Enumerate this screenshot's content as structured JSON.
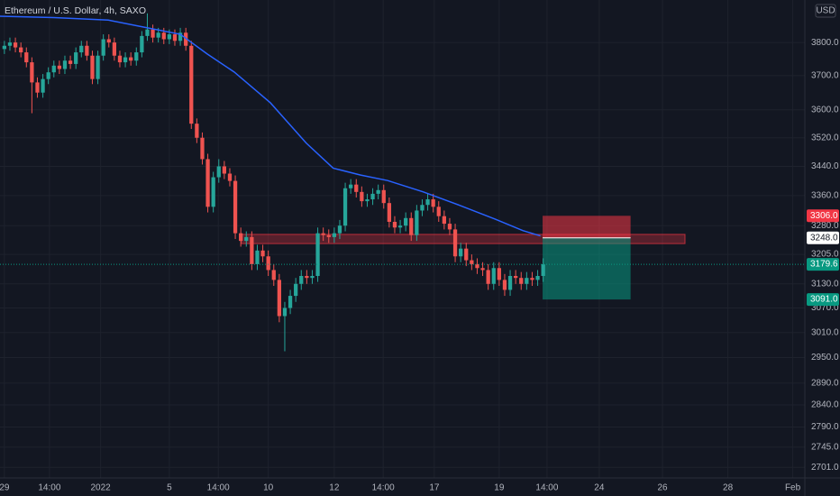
{
  "chart_data": {
    "type": "candlestick",
    "title": "Ethereum / U.S. Dollar, 4h, SAXO",
    "currency": "USD",
    "log": true,
    "grid": true,
    "up_color": "#26a69a",
    "down_color": "#ef5350",
    "open": [
      3780,
      3790,
      3800,
      3785,
      3770,
      3740,
      3680,
      3650,
      3690,
      3710,
      3730,
      3720,
      3745,
      3735,
      3770,
      3790,
      3760,
      3690,
      3760,
      3810,
      3800,
      3760,
      3740,
      3755,
      3745,
      3770,
      3820,
      3840,
      3815,
      3830,
      3810,
      3825,
      3805,
      3830,
      3790,
      3560,
      3520,
      3460,
      3330,
      3410,
      3440,
      3420,
      3400,
      3260,
      3240,
      3250,
      3180,
      3215,
      3200,
      3165,
      3140,
      3050,
      3070,
      3100,
      3130,
      3150,
      3145,
      3150,
      3260,
      3255,
      3250,
      3260,
      3280,
      3380,
      3390,
      3370,
      3345,
      3350,
      3365,
      3375,
      3340,
      3290,
      3275,
      3280,
      3300,
      3255,
      3320,
      3335,
      3350,
      3330,
      3305,
      3285,
      3270,
      3200,
      3220,
      3190,
      3180,
      3170,
      3165,
      3130,
      3170,
      3140,
      3115,
      3150,
      3145,
      3130,
      3145,
      3140,
      3150
    ],
    "high": [
      3805,
      3815,
      3815,
      3800,
      3785,
      3755,
      3695,
      3705,
      3725,
      3745,
      3745,
      3760,
      3760,
      3785,
      3805,
      3805,
      3775,
      3775,
      3825,
      3825,
      3815,
      3775,
      3770,
      3770,
      3785,
      3835,
      3890,
      3855,
      3845,
      3845,
      3840,
      3840,
      3845,
      3845,
      3805,
      3575,
      3535,
      3475,
      3425,
      3460,
      3455,
      3435,
      3415,
      3275,
      3265,
      3265,
      3230,
      3230,
      3215,
      3180,
      3155,
      3085,
      3115,
      3145,
      3165,
      3165,
      3165,
      3275,
      3275,
      3270,
      3275,
      3295,
      3395,
      3405,
      3405,
      3385,
      3365,
      3380,
      3390,
      3390,
      3355,
      3305,
      3295,
      3315,
      3315,
      3335,
      3350,
      3365,
      3365,
      3345,
      3320,
      3300,
      3285,
      3235,
      3235,
      3205,
      3195,
      3185,
      3180,
      3185,
      3185,
      3155,
      3165,
      3165,
      3160,
      3160,
      3160,
      3165,
      3195
    ],
    "low": [
      3765,
      3775,
      3770,
      3755,
      3725,
      3590,
      3635,
      3635,
      3675,
      3695,
      3705,
      3705,
      3720,
      3720,
      3755,
      3745,
      3675,
      3675,
      3745,
      3785,
      3745,
      3725,
      3725,
      3730,
      3730,
      3755,
      3805,
      3800,
      3800,
      3795,
      3795,
      3790,
      3790,
      3775,
      3545,
      3505,
      3445,
      3315,
      3315,
      3395,
      3405,
      3385,
      3245,
      3225,
      3225,
      3165,
      3165,
      3185,
      3150,
      3125,
      3035,
      2965,
      3055,
      3085,
      3115,
      3130,
      3130,
      3135,
      3240,
      3235,
      3235,
      3245,
      3265,
      3365,
      3355,
      3330,
      3330,
      3335,
      3350,
      3325,
      3275,
      3260,
      3260,
      3265,
      3240,
      3240,
      3305,
      3320,
      3315,
      3290,
      3270,
      3255,
      3185,
      3185,
      3175,
      3165,
      3155,
      3150,
      3115,
      3115,
      3125,
      3100,
      3100,
      3130,
      3115,
      3115,
      3125,
      3125,
      3135
    ],
    "close": [
      3790,
      3800,
      3785,
      3770,
      3740,
      3680,
      3650,
      3690,
      3710,
      3730,
      3720,
      3745,
      3735,
      3770,
      3790,
      3760,
      3690,
      3760,
      3810,
      3800,
      3760,
      3740,
      3755,
      3745,
      3770,
      3820,
      3840,
      3815,
      3830,
      3810,
      3825,
      3805,
      3830,
      3790,
      3560,
      3520,
      3460,
      3330,
      3410,
      3440,
      3420,
      3400,
      3260,
      3240,
      3250,
      3180,
      3215,
      3200,
      3165,
      3140,
      3050,
      3070,
      3100,
      3130,
      3150,
      3145,
      3150,
      3260,
      3255,
      3250,
      3260,
      3280,
      3380,
      3390,
      3370,
      3345,
      3350,
      3365,
      3375,
      3340,
      3290,
      3275,
      3280,
      3300,
      3255,
      3320,
      3335,
      3350,
      3330,
      3305,
      3285,
      3270,
      3200,
      3220,
      3190,
      3180,
      3170,
      3165,
      3130,
      3170,
      3140,
      3115,
      3150,
      3145,
      3130,
      3145,
      3140,
      3150,
      3179.6
    ],
    "ma": {
      "color": "#2962ff",
      "x": [
        -0.8,
        9,
        18.9,
        25.4,
        32,
        36.9,
        41.8,
        48.4,
        54.9,
        59.8,
        64.8,
        69.7,
        76.2,
        82.8,
        89.3,
        94.3,
        97.5
      ],
      "values": [
        3881,
        3877,
        3869,
        3847,
        3825,
        3765,
        3711,
        3620,
        3505,
        3435,
        3416,
        3401,
        3370,
        3334,
        3297,
        3267,
        3253
      ]
    },
    "zone": {
      "low": 3233,
      "high": 3257,
      "x_start": 43.1,
      "x_end": 123.8,
      "color": "#f23645"
    },
    "position": {
      "entry": 3248,
      "stop": 3306,
      "target": 3091,
      "x_start": 97.9,
      "x_end": 113.9
    },
    "price_labels": [
      {
        "value": 3306,
        "label": "3306.0",
        "color": "#f23645"
      },
      {
        "value": 3248,
        "label": "3248.0",
        "color": "#ffffff"
      },
      {
        "value": 3179.6,
        "label": "3179.6",
        "color": "#089981"
      },
      {
        "value": 3091,
        "label": "3091.0",
        "color": "#089981"
      }
    ],
    "xlim": [
      -0.8,
      145.6
    ],
    "xticks": [
      {
        "value": 0,
        "label": "29"
      },
      {
        "value": 8.2,
        "label": "14:00"
      },
      {
        "value": 17.5,
        "label": "2022"
      },
      {
        "value": 30,
        "label": "5"
      },
      {
        "value": 38.9,
        "label": "14:00"
      },
      {
        "value": 48,
        "label": "10"
      },
      {
        "value": 60,
        "label": "12"
      },
      {
        "value": 68.9,
        "label": "14:00"
      },
      {
        "value": 78.2,
        "label": "17"
      },
      {
        "value": 90,
        "label": "19"
      },
      {
        "value": 98.7,
        "label": "14:00"
      },
      {
        "value": 108.2,
        "label": "24"
      },
      {
        "value": 119.7,
        "label": "26"
      },
      {
        "value": 131.6,
        "label": "28"
      },
      {
        "value": 143.4,
        "label": "Feb"
      }
    ],
    "ylim": [
      2678,
      3932
    ],
    "yticks": [
      {
        "value": 3800,
        "label": "3800.0"
      },
      {
        "value": 3700,
        "label": "3700.0"
      },
      {
        "value": 3600,
        "label": "3600.0"
      },
      {
        "value": 3520,
        "label": "3520.0"
      },
      {
        "value": 3440,
        "label": "3440.0"
      },
      {
        "value": 3360,
        "label": "3360.0"
      },
      {
        "value": 3280,
        "label": "3280.0"
      },
      {
        "value": 3205,
        "label": "3205.0"
      },
      {
        "value": 3130,
        "label": "3130.0"
      },
      {
        "value": 3070,
        "label": "3070.0"
      },
      {
        "value": 3010,
        "label": "3010.0"
      },
      {
        "value": 2950,
        "label": "2950.0"
      },
      {
        "value": 2890,
        "label": "2890.0"
      },
      {
        "value": 2840,
        "label": "2840.0"
      },
      {
        "value": 2790,
        "label": "2790.0"
      },
      {
        "value": 2745,
        "label": "2745.0"
      },
      {
        "value": 2701,
        "label": "2701.0"
      }
    ]
  }
}
